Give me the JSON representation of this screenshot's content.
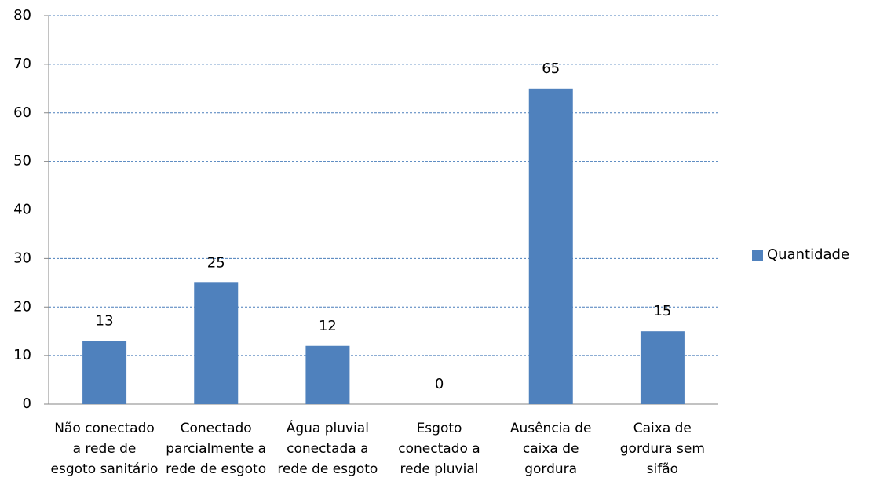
{
  "chart_data": {
    "type": "bar",
    "categories": [
      "Não conectado a rede de esgoto sanitário",
      "Conectado parcialmente a rede de esgoto",
      "Água pluvial conectada a rede de esgoto",
      "Esgoto conectado a rede pluvial",
      "Ausência de caixa de gordura",
      "Caixa de gordura sem sifão"
    ],
    "series": [
      {
        "name": "Quantidade",
        "color": "#4f81bd",
        "values": [
          13,
          25,
          12,
          0,
          65,
          15
        ]
      }
    ],
    "ylim": [
      0,
      80
    ],
    "yticks": [
      0,
      10,
      20,
      30,
      40,
      50,
      60,
      70,
      80
    ],
    "grid": true,
    "legend": "right"
  }
}
